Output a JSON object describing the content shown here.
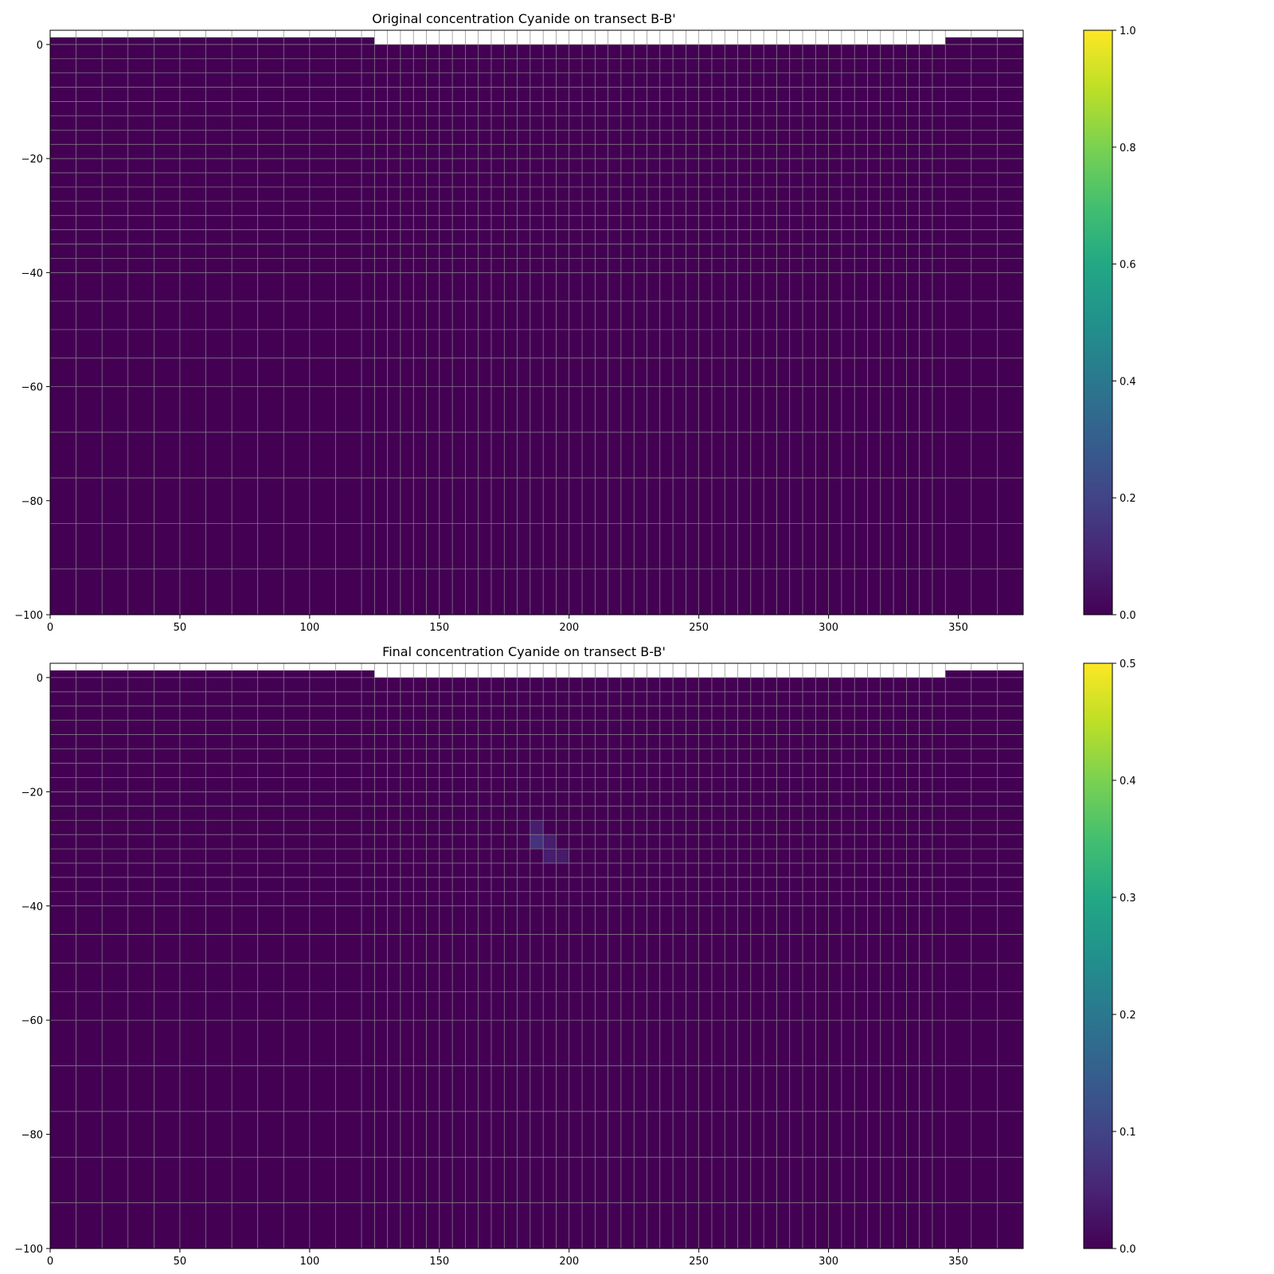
{
  "chart_data": [
    {
      "type": "heatmap",
      "title": "Original concentration Cyanide on transect B-B'",
      "xlim": [
        0,
        375
      ],
      "ylim": [
        -100,
        2.5
      ],
      "xticks": [
        "0",
        "50",
        "100",
        "150",
        "200",
        "250",
        "300",
        "350"
      ],
      "yticks": [
        "0",
        "−20",
        "−40",
        "−60",
        "−80",
        "−100"
      ],
      "colorbar": {
        "range": [
          0.0,
          1.0
        ],
        "ticks": [
          "0.0",
          "0.2",
          "0.4",
          "0.6",
          "0.8",
          "1.0"
        ],
        "colormap": "viridis"
      },
      "field": {
        "background": 0.0,
        "anomalies": []
      },
      "surface_top": [
        {
          "x0": 0,
          "x1": 125,
          "top": 1.25
        },
        {
          "x0": 125,
          "x1": 345,
          "top": 0
        },
        {
          "x0": 345,
          "x1": 375,
          "top": 1.25
        }
      ],
      "grid": true
    },
    {
      "type": "heatmap",
      "title": "Final concentration Cyanide on transect B-B'",
      "xlim": [
        0,
        375
      ],
      "ylim": [
        -100,
        2.5
      ],
      "xticks": [
        "0",
        "50",
        "100",
        "150",
        "200",
        "250",
        "300",
        "350"
      ],
      "yticks": [
        "0",
        "−20",
        "−40",
        "−60",
        "−80",
        "−100"
      ],
      "colorbar": {
        "range": [
          0.0,
          0.5
        ],
        "ticks": [
          "0.0",
          "0.1",
          "0.2",
          "0.3",
          "0.4",
          "0.5"
        ],
        "colormap": "viridis"
      },
      "field": {
        "background": 0.0,
        "anomalies": [
          {
            "x0": 185,
            "x1": 190,
            "y0": -27.5,
            "y1": -25,
            "value": 0.04
          },
          {
            "x0": 185,
            "x1": 190,
            "y0": -30,
            "y1": -27.5,
            "value": 0.07
          },
          {
            "x0": 190,
            "x1": 195,
            "y0": -30,
            "y1": -27.5,
            "value": 0.04
          },
          {
            "x0": 190,
            "x1": 195,
            "y0": -32.5,
            "y1": -30,
            "value": 0.04
          },
          {
            "x0": 195,
            "x1": 200,
            "y0": -32.5,
            "y1": -30,
            "value": 0.035
          }
        ]
      },
      "surface_top": [
        {
          "x0": 0,
          "x1": 125,
          "top": 1.25
        },
        {
          "x0": 125,
          "x1": 345,
          "top": 0
        },
        {
          "x0": 345,
          "x1": 375,
          "top": 1.25
        }
      ],
      "grid": true
    }
  ]
}
